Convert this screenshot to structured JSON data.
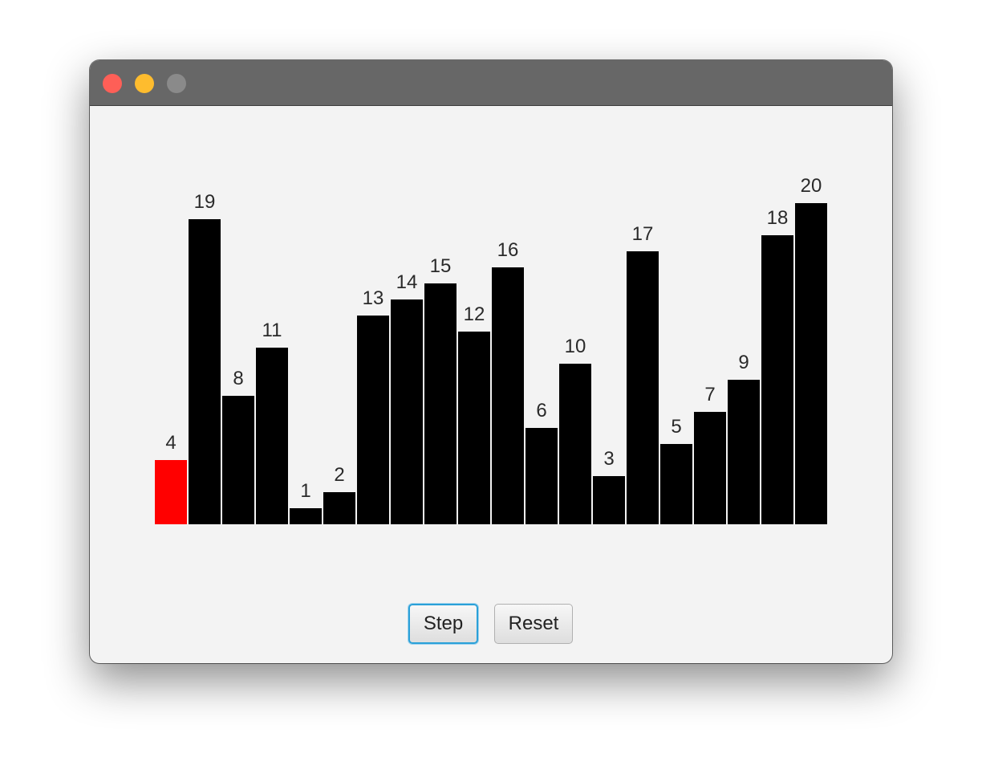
{
  "window": {
    "traffic_lights": {
      "close_color": "#fe5f57",
      "minimize_color": "#febc2e",
      "zoom_color": "#8a8a8a"
    }
  },
  "toolbar": {
    "step_label": "Step",
    "reset_label": "Reset"
  },
  "chart_data": {
    "type": "bar",
    "values": [
      4,
      19,
      8,
      11,
      1,
      2,
      13,
      14,
      15,
      12,
      16,
      6,
      10,
      3,
      17,
      5,
      7,
      9,
      18,
      20
    ],
    "data_labels": [
      "4",
      "19",
      "8",
      "11",
      "1",
      "2",
      "13",
      "14",
      "15",
      "12",
      "16",
      "6",
      "10",
      "3",
      "17",
      "5",
      "7",
      "9",
      "18",
      "20"
    ],
    "highlight_index": 0,
    "highlight_color": "#ff0000",
    "bar_color": "#000000",
    "ylim": [
      0,
      20
    ],
    "grid": false,
    "legend": "none"
  }
}
